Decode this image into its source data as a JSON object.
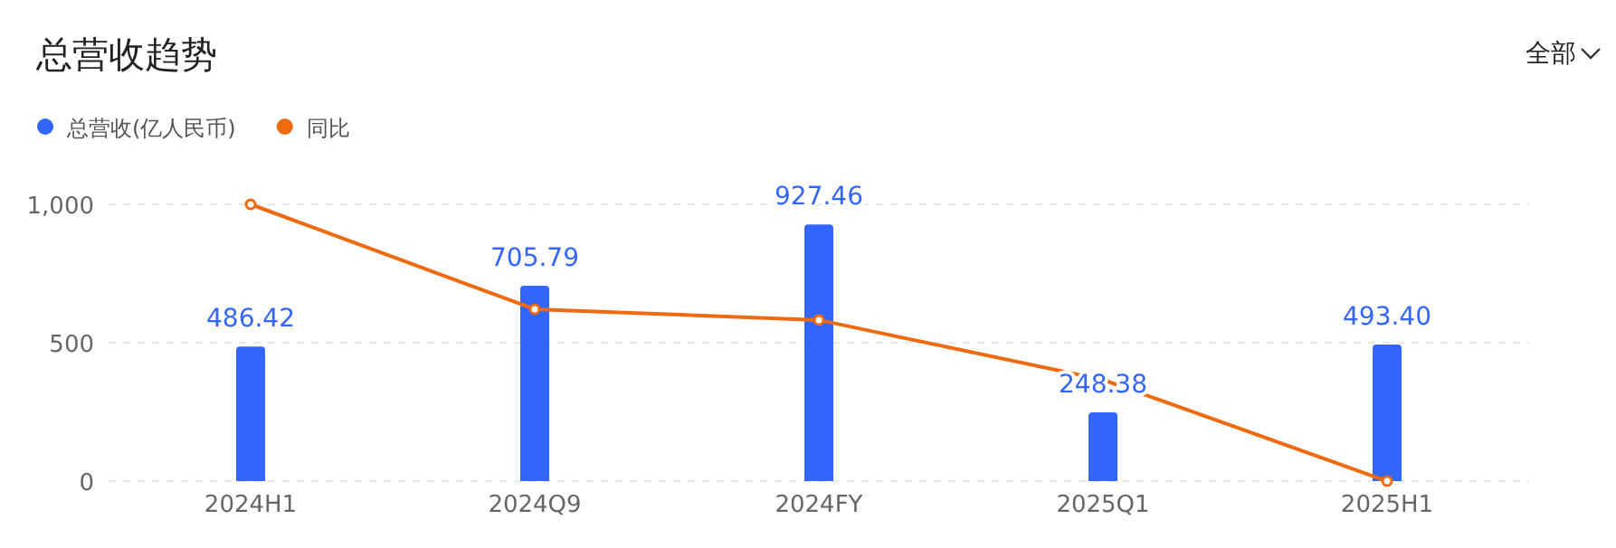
{
  "chart_data": {
    "type": "bar",
    "title": "总营收趋势",
    "annotations": [
      "全部"
    ],
    "categories": [
      "2024H1",
      "2024Q9",
      "2024FY",
      "2025Q1",
      "2025H1"
    ],
    "series": [
      {
        "name": "总营收(亿人民币)",
        "color": "#3366ff",
        "values": [
          486.42,
          705.79,
          927.46,
          248.38,
          493.4
        ],
        "value_labels": [
          "486.42",
          "705.79",
          "927.46",
          "248.38",
          "493.40"
        ]
      },
      {
        "name": "同比",
        "type": "line",
        "color": "#ee6a10",
        "values": [
          1000,
          621,
          582,
          366,
          0
        ],
        "marker": "circle"
      }
    ],
    "ylim": [
      0,
      1000
    ],
    "yticks": [
      0,
      {
        "value": 500,
        "label": "500"
      },
      {
        "value": 1000,
        "label": "1,000"
      }
    ],
    "grid": "y",
    "legend": "top left"
  }
}
